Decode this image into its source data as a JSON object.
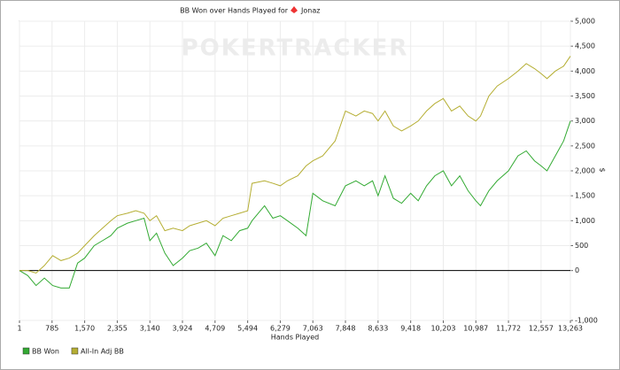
{
  "chart_data": {
    "type": "line",
    "title": "BB Won over Hands Played for",
    "player": "Jonaz",
    "watermark": "POKERTRACKER",
    "xlabel": "Hands Played",
    "ylabel": "$",
    "x": [
      1,
      200,
      400,
      600,
      800,
      1000,
      1200,
      1400,
      1570,
      1800,
      2000,
      2200,
      2355,
      2600,
      2800,
      3000,
      3140,
      3300,
      3500,
      3700,
      3924,
      4100,
      4300,
      4500,
      4709,
      4900,
      5100,
      5300,
      5494,
      5600,
      5900,
      6100,
      6279,
      6450,
      6700,
      6900,
      7063,
      7300,
      7600,
      7848,
      8100,
      8300,
      8500,
      8633,
      8800,
      9000,
      9200,
      9418,
      9600,
      9800,
      10000,
      10203,
      10400,
      10600,
      10800,
      10987,
      11100,
      11300,
      11500,
      11772,
      12000,
      12200,
      12400,
      12557,
      12700,
      12900,
      13100,
      13263
    ],
    "series": [
      {
        "name": "BB Won",
        "color": "#33aa33",
        "values": [
          0,
          -100,
          -300,
          -150,
          -300,
          -350,
          -350,
          150,
          250,
          500,
          600,
          700,
          850,
          950,
          1000,
          1050,
          600,
          750,
          350,
          100,
          250,
          400,
          450,
          550,
          300,
          700,
          600,
          800,
          850,
          1000,
          1300,
          1050,
          1100,
          1000,
          850,
          700,
          1550,
          1400,
          1300,
          1700,
          1800,
          1700,
          1800,
          1500,
          1900,
          1450,
          1350,
          1550,
          1400,
          1700,
          1900,
          2000,
          1700,
          1900,
          1600,
          1400,
          1300,
          1600,
          1800,
          2000,
          2300,
          2400,
          2200,
          2100,
          2000,
          2300,
          2600,
          3000
        ]
      },
      {
        "name": "All-In Adj BB",
        "color": "#b5ae33",
        "values": [
          0,
          0,
          -50,
          100,
          300,
          200,
          250,
          350,
          500,
          700,
          850,
          1000,
          1100,
          1150,
          1200,
          1150,
          1000,
          1100,
          800,
          850,
          800,
          900,
          950,
          1000,
          900,
          1050,
          1100,
          1150,
          1200,
          1750,
          1800,
          1750,
          1700,
          1800,
          1900,
          2100,
          2200,
          2300,
          2600,
          3200,
          3100,
          3200,
          3150,
          3000,
          3200,
          2900,
          2800,
          2900,
          3000,
          3200,
          3350,
          3450,
          3200,
          3300,
          3100,
          3000,
          3100,
          3500,
          3700,
          3850,
          4000,
          4150,
          4050,
          3950,
          3850,
          4000,
          4100,
          4300
        ]
      }
    ],
    "xlim": [
      1,
      13263
    ],
    "xticks": [
      1,
      785,
      {
        "value": 1570,
        "label": "1,570"
      },
      {
        "value": 2355,
        "label": "2,355"
      },
      {
        "value": 3140,
        "label": "3,140"
      },
      {
        "value": 3924,
        "label": "3,924"
      },
      {
        "value": 4709,
        "label": "4,709"
      },
      {
        "value": 5494,
        "label": "5,494"
      },
      {
        "value": 6279,
        "label": "6,279"
      },
      {
        "value": 7063,
        "label": "7,063"
      },
      {
        "value": 7848,
        "label": "7,848"
      },
      {
        "value": 8633,
        "label": "8,633"
      },
      {
        "value": 9418,
        "label": "9,418"
      },
      {
        "value": 10203,
        "label": "10,203"
      },
      {
        "value": 10987,
        "label": "10,987"
      },
      {
        "value": 11772,
        "label": "11,772"
      },
      {
        "value": 12557,
        "label": "12,557"
      },
      {
        "value": 13263,
        "label": "13,263"
      }
    ],
    "ylim": [
      -1000,
      5000
    ],
    "yticks": [
      {
        "value": -1000,
        "label": "-1,000"
      },
      0,
      500,
      {
        "value": 1000,
        "label": "1,000"
      },
      {
        "value": 1500,
        "label": "1,500"
      },
      {
        "value": 2000,
        "label": "2,000"
      },
      {
        "value": 2500,
        "label": "2,500"
      },
      {
        "value": 3000,
        "label": "3,000"
      },
      {
        "value": 3500,
        "label": "3,500"
      },
      {
        "value": 4000,
        "label": "4,000"
      },
      {
        "value": 4500,
        "label": "4,500"
      },
      {
        "value": 5000,
        "label": "5,000"
      }
    ],
    "grid": true
  }
}
